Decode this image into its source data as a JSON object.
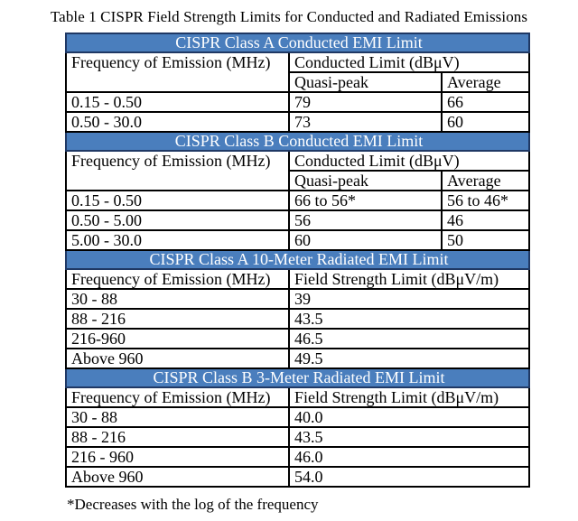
{
  "title": "Table 1 CISPR Field Strength Limits for Conducted and Radiated Emissions",
  "footnote": "*Decreases with the log of the frequency",
  "colors": {
    "band_fill": "#4a7ebd",
    "band_border": "#1f3864",
    "band_text": "#ffffff",
    "grid": "#000000"
  },
  "table": {
    "freq_header": "Frequency of Emission (MHz)",
    "sections": [
      {
        "band": "CISPR Class A Conducted EMI Limit",
        "limit_header": "Conducted Limit (dBμV)",
        "sub_headers": [
          "Quasi-peak",
          "Average"
        ],
        "rows": [
          [
            "0.15 - 0.50",
            "79",
            "66"
          ],
          [
            "0.50 - 30.0",
            "73",
            "60"
          ]
        ]
      },
      {
        "band": "CISPR Class B Conducted EMI Limit",
        "limit_header": "Conducted Limit (dBμV)",
        "sub_headers": [
          "Quasi-peak",
          "Average"
        ],
        "rows": [
          [
            "0.15 - 0.50",
            "66 to 56*",
            "56 to 46*"
          ],
          [
            "0.50 - 5.00",
            "56",
            "46"
          ],
          [
            "5.00 - 30.0",
            "60",
            "50"
          ]
        ]
      },
      {
        "band": "CISPR Class A 10-Meter Radiated EMI Limit",
        "limit_header": "Field Strength Limit (dBμV/m)",
        "rows": [
          [
            "30 - 88",
            "39"
          ],
          [
            "88 - 216",
            "43.5"
          ],
          [
            "216-960",
            "46.5"
          ],
          [
            "Above 960",
            "49.5"
          ]
        ]
      },
      {
        "band": "CISPR Class B 3-Meter Radiated EMI Limit",
        "limit_header": "Field Strength Limit (dBμV/m)",
        "rows": [
          [
            "30 - 88",
            "40.0"
          ],
          [
            "88 - 216",
            "43.5"
          ],
          [
            "216 - 960",
            "46.0"
          ],
          [
            "Above 960",
            "54.0"
          ]
        ]
      }
    ]
  }
}
